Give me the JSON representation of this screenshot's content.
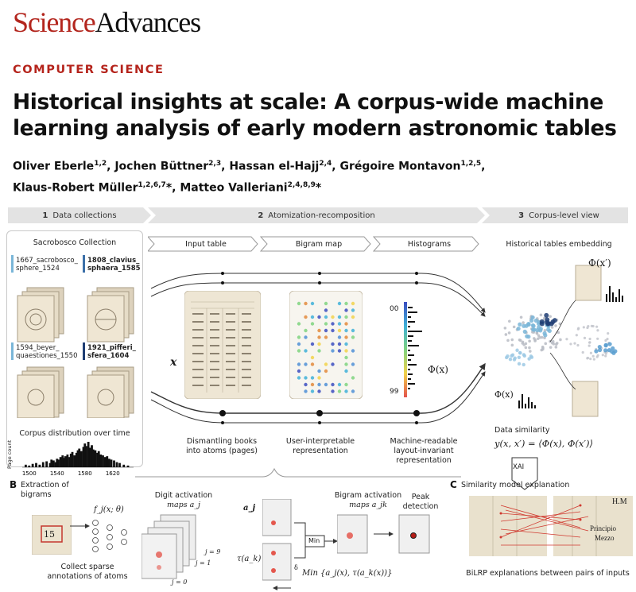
{
  "journal": {
    "name_part1": "Science",
    "name_part2": "Advances",
    "brand_color": "#b3261e"
  },
  "section": "COMPUTER SCIENCE",
  "title_lines": [
    "Historical insights at scale: A corpus-wide machine",
    "learning analysis of early modern astronomic tables"
  ],
  "authors": {
    "line1": [
      {
        "name": "Oliver Eberle",
        "aff": "1,2",
        "sep": ", "
      },
      {
        "name": "Jochen Büttner",
        "aff": "2,3",
        "sep": ", "
      },
      {
        "name": "Hassan el-Hajj",
        "aff": "2,4",
        "sep": ", "
      },
      {
        "name": "Grégoire Montavon",
        "aff": "1,2,5",
        "sep": ","
      }
    ],
    "line2": [
      {
        "name": "Klaus-Robert Müller",
        "aff": "1,2,6,7",
        "sep": "*, "
      },
      {
        "name": "Matteo Valleriani",
        "aff": "2,4,8,9",
        "sep": "*"
      }
    ]
  },
  "figure": {
    "stages": [
      {
        "num": "1",
        "label": "Data collections"
      },
      {
        "num": "2",
        "label": "Atomization-recomposition"
      },
      {
        "num": "3",
        "label": "Corpus-level view"
      }
    ],
    "collection": {
      "title": "Sacrobosco Collection",
      "docs": [
        {
          "line1": "1667_sacrobosco_",
          "line2": "sphere_1524",
          "bold": false,
          "color": "#7ab6d8"
        },
        {
          "line1": "1808_clavius_",
          "line2": "sphaera_1585",
          "bold": true,
          "color": "#3b6fa8"
        },
        {
          "line1": "1594_beyer_",
          "line2": "quaestiones_1550",
          "bold": false,
          "color": "#7ab6d8"
        },
        {
          "line1": "1921_pifferi_",
          "line2": "sfera_1604",
          "bold": true,
          "color": "#1e3d73"
        }
      ],
      "distribution_title": "Corpus distribution over time",
      "ylabel": "Page count",
      "xticks": [
        "1500",
        "1540",
        "1580",
        "1620"
      ]
    },
    "pipeline": {
      "columns": [
        "Input table",
        "Bigram map",
        "Histograms"
      ],
      "x_label": "x",
      "phi_label": "Φ(x)",
      "hist_top": "00",
      "hist_bottom": "99",
      "captions": [
        [
          "Dismantling books",
          "into atoms (pages)"
        ],
        [
          "User-interpretable",
          "representation"
        ],
        [
          "Machine-readable",
          "layout-invariant",
          "representation"
        ]
      ]
    },
    "corpus_view": {
      "title": "Historical tables embedding",
      "phi_prime": "Φ(x′)",
      "phi": "Φ(x)",
      "data_similarity_label": "Data similarity",
      "similarity_formula": "y(x, x′) = ⟨Φ(x), Φ(x′)⟩",
      "xai_label": "XAI"
    },
    "panel_b": {
      "letter": "B",
      "title_lines": [
        "Extraction of",
        "bigrams"
      ],
      "annotation_lines": [
        "Collect sparse",
        "annotations of atoms"
      ],
      "f_label": "f_j(x; θ)",
      "digit_maps_lines": [
        "Digit activation",
        "maps a_j"
      ],
      "j_top": "j = 9",
      "j_mid": "j = 1",
      "j_zero": "j = 0",
      "aj_label": "a_j",
      "tau_label": "τ(a_k)",
      "delta_label": "δ",
      "min_box": "Min",
      "bigram_maps_lines": [
        "Bigram activation",
        "maps a_jk"
      ],
      "peak_lines": [
        "Peak",
        "detection"
      ],
      "min_formula": "Min {a_j(x), τ(a_k(x))}",
      "crop_digit": "15"
    },
    "panel_c": {
      "letter": "C",
      "title": "Similarity model explanation",
      "caption": "BiLRP explanations between pairs of inputs",
      "right_labels": [
        "H.M",
        "Principio",
        "Mezzo"
      ]
    }
  },
  "chart_data": {
    "type": "bar",
    "title": "Corpus distribution over time",
    "xlabel": "",
    "ylabel": "Page count",
    "xlim": [
      1490,
      1650
    ],
    "xticks": [
      1500,
      1540,
      1580,
      1620
    ],
    "x": [
      1495,
      1500,
      1505,
      1510,
      1515,
      1520,
      1525,
      1530,
      1532,
      1535,
      1538,
      1540,
      1542,
      1545,
      1548,
      1550,
      1552,
      1555,
      1558,
      1560,
      1562,
      1565,
      1568,
      1570,
      1572,
      1575,
      1578,
      1580,
      1582,
      1585,
      1588,
      1590,
      1592,
      1595,
      1598,
      1600,
      1603,
      1606,
      1609,
      1612,
      1615,
      1618,
      1622,
      1626,
      1630,
      1636,
      1642
    ],
    "values": [
      3,
      2,
      4,
      5,
      3,
      6,
      7,
      5,
      9,
      8,
      6,
      10,
      9,
      12,
      14,
      11,
      13,
      15,
      12,
      16,
      18,
      14,
      17,
      20,
      22,
      19,
      24,
      28,
      25,
      30,
      23,
      26,
      21,
      20,
      17,
      19,
      15,
      14,
      12,
      13,
      10,
      9,
      8,
      6,
      5,
      3,
      2
    ]
  }
}
